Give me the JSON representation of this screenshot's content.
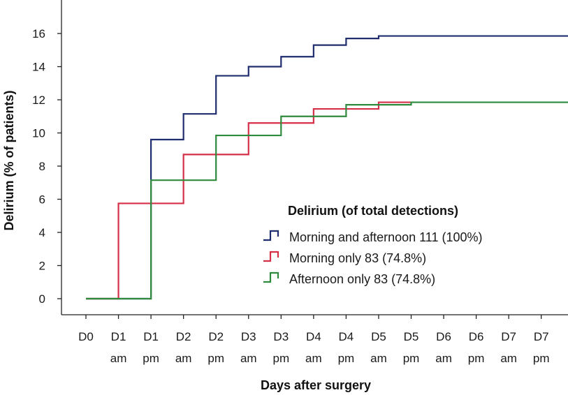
{
  "chart_data": {
    "type": "line",
    "step": true,
    "title": "",
    "xlabel": "Days after surgery",
    "ylabel": "Delirium (% of patients)",
    "categories": [
      [
        "D0",
        ""
      ],
      [
        "D1",
        "am"
      ],
      [
        "D1",
        "pm"
      ],
      [
        "D2",
        "am"
      ],
      [
        "D2",
        "pm"
      ],
      [
        "D3",
        "am"
      ],
      [
        "D3",
        "pm"
      ],
      [
        "D4",
        "am"
      ],
      [
        "D4",
        "pm"
      ],
      [
        "D5",
        "am"
      ],
      [
        "D5",
        "pm"
      ],
      [
        "D6",
        "am"
      ],
      [
        "D6",
        "pm"
      ],
      [
        "D7",
        "am"
      ],
      [
        "D7",
        "pm"
      ]
    ],
    "y_ticks": [
      0,
      2,
      4,
      6,
      8,
      10,
      12,
      14,
      16
    ],
    "ylim": [
      0,
      17.5
    ],
    "legend_title": "Delirium (of total detections)",
    "legend_position": "center-right",
    "series": [
      {
        "name": "Morning and afternoon 111 (100%)",
        "color": "#1f2d6e",
        "steps": [
          [
            0,
            0
          ],
          [
            2,
            9.6
          ],
          [
            3,
            11.15
          ],
          [
            4,
            13.45
          ],
          [
            5,
            14.0
          ],
          [
            6,
            14.6
          ],
          [
            7,
            15.3
          ],
          [
            8,
            15.7
          ],
          [
            9,
            15.85
          ],
          [
            15,
            15.85
          ]
        ]
      },
      {
        "name": "Morning only 83 (74.8%)",
        "color": "#d62f48",
        "steps": [
          [
            0,
            0
          ],
          [
            1,
            5.75
          ],
          [
            3,
            8.7
          ],
          [
            5,
            10.6
          ],
          [
            7,
            11.45
          ],
          [
            9,
            11.85
          ],
          [
            10,
            11.85
          ]
        ]
      },
      {
        "name": "Afternoon only 83 (74.8%)",
        "color": "#2e8a3c",
        "steps": [
          [
            0,
            0
          ],
          [
            2,
            7.15
          ],
          [
            4,
            9.85
          ],
          [
            6,
            11.0
          ],
          [
            8,
            11.7
          ],
          [
            10,
            11.85
          ],
          [
            15,
            11.85
          ]
        ]
      }
    ]
  }
}
